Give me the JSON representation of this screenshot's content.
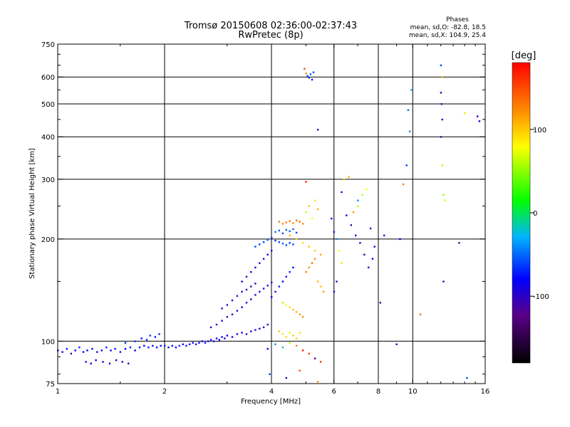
{
  "header": {
    "title": "Tromsø 20150608 02:36:00-02:37:43",
    "subtitle": "RwPretec (8p)"
  },
  "stats": {
    "heading": "Phases",
    "line_o": "mean, sd,O: -82.8, 18.5",
    "line_x": "mean, sd,X: 104.9, 25.4"
  },
  "colorbar": {
    "unit": "[deg]",
    "ticks": [
      {
        "value": 100,
        "label": "100"
      },
      {
        "value": 0,
        "label": "0"
      },
      {
        "value": -100,
        "label": "-100"
      }
    ],
    "range": [
      -180,
      180
    ],
    "colors": [
      "#000000",
      "#5a0088",
      "#0000ff",
      "#00b4ff",
      "#00ff00",
      "#ffff00",
      "#ff8c00",
      "#ff0000"
    ]
  },
  "chart_data": {
    "type": "scatter",
    "title": "Tromsø 20150608 02:36:00-02:37:43",
    "subtitle": "RwPretec (8p)",
    "xlabel": "Frequency [MHz]",
    "ylabel": "Stationary phase Virtual Height [km]",
    "x_scale": "log",
    "y_scale": "log",
    "xlim": [
      1,
      16
    ],
    "ylim": [
      75,
      750
    ],
    "grid": true,
    "x_ticks": [
      {
        "value": 1,
        "label": "1"
      },
      {
        "value": 2,
        "label": "2"
      },
      {
        "value": 4,
        "label": "4"
      },
      {
        "value": 6,
        "label": "6"
      },
      {
        "value": 8,
        "label": "8"
      },
      {
        "value": 10,
        "label": "10"
      },
      {
        "value": 16,
        "label": "16"
      }
    ],
    "y_ticks": [
      {
        "value": 75,
        "label": "75"
      },
      {
        "value": 100,
        "label": "100"
      },
      {
        "value": 200,
        "label": "200"
      },
      {
        "value": 300,
        "label": "300"
      },
      {
        "value": 400,
        "label": "400"
      },
      {
        "value": 500,
        "label": "500"
      },
      {
        "value": 600,
        "label": "600"
      },
      {
        "value": 750,
        "label": "750"
      }
    ],
    "x_grid": [
      2,
      4,
      6,
      8,
      10
    ],
    "y_grid": [
      100,
      200,
      300,
      400,
      500,
      600
    ],
    "color_by": "phase_deg",
    "points": [
      [
        1.0,
        94,
        -80
      ],
      [
        1.03,
        93,
        -85
      ],
      [
        1.06,
        95,
        -75
      ],
      [
        1.09,
        92,
        -90
      ],
      [
        1.12,
        94,
        -80
      ],
      [
        1.15,
        96,
        -70
      ],
      [
        1.18,
        93,
        -85
      ],
      [
        1.21,
        94,
        -80
      ],
      [
        1.25,
        95,
        -75
      ],
      [
        1.29,
        93,
        -95
      ],
      [
        1.33,
        94,
        -80
      ],
      [
        1.37,
        96,
        -70
      ],
      [
        1.41,
        94,
        -85
      ],
      [
        1.45,
        95,
        -75
      ],
      [
        1.5,
        93,
        -90
      ],
      [
        1.55,
        95,
        -80
      ],
      [
        1.6,
        96,
        -70
      ],
      [
        1.65,
        94,
        -85
      ],
      [
        1.7,
        96,
        -75
      ],
      [
        1.75,
        97,
        -80
      ],
      [
        1.8,
        96,
        -70
      ],
      [
        1.85,
        97,
        -85
      ],
      [
        1.9,
        96,
        -75
      ],
      [
        1.95,
        97,
        -80
      ],
      [
        2.0,
        97,
        -70
      ],
      [
        2.05,
        96,
        -85
      ],
      [
        2.1,
        97,
        -75
      ],
      [
        2.15,
        96,
        -80
      ],
      [
        2.2,
        97,
        -70
      ],
      [
        2.25,
        98,
        -85
      ],
      [
        2.3,
        97,
        -75
      ],
      [
        2.35,
        98,
        -80
      ],
      [
        2.4,
        99,
        -85
      ],
      [
        2.45,
        98,
        -75
      ],
      [
        2.5,
        99,
        -80
      ],
      [
        2.55,
        100,
        -85
      ],
      [
        2.6,
        99,
        -75
      ],
      [
        2.65,
        100,
        -90
      ],
      [
        2.7,
        101,
        -80
      ],
      [
        2.75,
        100,
        -85
      ],
      [
        2.8,
        102,
        -75
      ],
      [
        2.85,
        101,
        -90
      ],
      [
        2.9,
        103,
        -80
      ],
      [
        2.95,
        102,
        -85
      ],
      [
        3.0,
        104,
        -90
      ],
      [
        3.1,
        103,
        -85
      ],
      [
        3.2,
        105,
        -95
      ],
      [
        3.3,
        106,
        -90
      ],
      [
        3.4,
        105,
        -100
      ],
      [
        3.5,
        107,
        -95
      ],
      [
        3.6,
        108,
        -100
      ],
      [
        3.7,
        109,
        -95
      ],
      [
        3.8,
        110,
        -100
      ],
      [
        3.9,
        112,
        -95
      ],
      [
        1.2,
        87,
        -90
      ],
      [
        1.24,
        86,
        -95
      ],
      [
        1.28,
        88,
        -85
      ],
      [
        1.34,
        87,
        -90
      ],
      [
        1.4,
        86,
        -95
      ],
      [
        1.46,
        88,
        -85
      ],
      [
        1.52,
        87,
        -90
      ],
      [
        1.58,
        86,
        -95
      ],
      [
        1.55,
        99,
        -70
      ],
      [
        1.65,
        100,
        -65
      ],
      [
        1.72,
        102,
        -75
      ],
      [
        1.78,
        101,
        -70
      ],
      [
        1.82,
        104,
        -65
      ],
      [
        1.88,
        103,
        -75
      ],
      [
        1.93,
        105,
        -70
      ],
      [
        2.7,
        110,
        -95
      ],
      [
        2.8,
        112,
        -100
      ],
      [
        2.9,
        115,
        -95
      ],
      [
        3.0,
        118,
        -100
      ],
      [
        3.1,
        120,
        -95
      ],
      [
        3.2,
        123,
        -100
      ],
      [
        3.3,
        126,
        -95
      ],
      [
        3.4,
        130,
        -100
      ],
      [
        3.5,
        133,
        -95
      ],
      [
        3.6,
        137,
        -100
      ],
      [
        3.7,
        140,
        -95
      ],
      [
        3.8,
        143,
        -100
      ],
      [
        3.9,
        146,
        -95
      ],
      [
        4.0,
        149,
        -100
      ],
      [
        2.9,
        125,
        -100
      ],
      [
        3.0,
        128,
        -105
      ],
      [
        3.1,
        132,
        -100
      ],
      [
        3.2,
        136,
        -105
      ],
      [
        3.3,
        140,
        -100
      ],
      [
        3.4,
        142,
        -105
      ],
      [
        3.5,
        145,
        -100
      ],
      [
        3.6,
        148,
        -105
      ],
      [
        3.3,
        150,
        -95
      ],
      [
        3.4,
        155,
        -100
      ],
      [
        3.5,
        160,
        -95
      ],
      [
        3.6,
        165,
        -90
      ],
      [
        3.7,
        170,
        -95
      ],
      [
        3.8,
        175,
        -90
      ],
      [
        3.9,
        180,
        -85
      ],
      [
        4.0,
        185,
        -80
      ],
      [
        3.6,
        190,
        -60
      ],
      [
        3.7,
        193,
        -65
      ],
      [
        3.8,
        196,
        -60
      ],
      [
        3.9,
        199,
        -55
      ],
      [
        4.0,
        202,
        -60
      ],
      [
        4.1,
        198,
        -65
      ],
      [
        4.2,
        196,
        -60
      ],
      [
        4.3,
        194,
        -55
      ],
      [
        4.4,
        192,
        -60
      ],
      [
        4.5,
        195,
        -65
      ],
      [
        4.6,
        193,
        -60
      ],
      [
        4.1,
        210,
        -50
      ],
      [
        4.2,
        212,
        -55
      ],
      [
        4.3,
        208,
        -60
      ],
      [
        4.4,
        213,
        -50
      ],
      [
        4.5,
        211,
        -55
      ],
      [
        4.6,
        214,
        -50
      ],
      [
        4.7,
        209,
        -60
      ],
      [
        4.2,
        225,
        130
      ],
      [
        4.3,
        222,
        125
      ],
      [
        4.4,
        224,
        135
      ],
      [
        4.5,
        226,
        130
      ],
      [
        4.6,
        223,
        120
      ],
      [
        4.7,
        227,
        135
      ],
      [
        4.8,
        225,
        130
      ],
      [
        4.9,
        222,
        125
      ],
      [
        4.5,
        205,
        110
      ],
      [
        4.7,
        200,
        100
      ],
      [
        4.9,
        195,
        95
      ],
      [
        5.1,
        190,
        105
      ],
      [
        5.3,
        185,
        100
      ],
      [
        5.5,
        180,
        110
      ],
      [
        4.0,
        135,
        -80
      ],
      [
        4.1,
        140,
        -75
      ],
      [
        4.2,
        145,
        -70
      ],
      [
        4.3,
        150,
        -80
      ],
      [
        4.4,
        155,
        -75
      ],
      [
        4.5,
        160,
        -70
      ],
      [
        4.6,
        165,
        -80
      ],
      [
        4.3,
        130,
        60
      ],
      [
        4.4,
        128,
        80
      ],
      [
        4.5,
        126,
        90
      ],
      [
        4.6,
        124,
        100
      ],
      [
        4.7,
        122,
        110
      ],
      [
        4.8,
        120,
        115
      ],
      [
        4.9,
        118,
        120
      ],
      [
        4.2,
        107,
        100
      ],
      [
        4.3,
        105,
        90
      ],
      [
        4.4,
        103,
        95
      ],
      [
        4.5,
        106,
        85
      ],
      [
        4.6,
        104,
        100
      ],
      [
        4.7,
        102,
        95
      ],
      [
        4.8,
        106,
        90
      ],
      [
        3.9,
        95,
        -90
      ],
      [
        4.1,
        98,
        -40
      ],
      [
        4.3,
        96,
        -20
      ],
      [
        4.5,
        99,
        60
      ],
      [
        4.7,
        97,
        130
      ],
      [
        4.9,
        94,
        170
      ],
      [
        5.1,
        92,
        150
      ],
      [
        5.3,
        89,
        -120
      ],
      [
        5.5,
        87,
        160
      ],
      [
        3.95,
        80,
        -60
      ],
      [
        4.4,
        78,
        -100
      ],
      [
        4.8,
        82,
        150
      ],
      [
        5.4,
        76,
        120
      ],
      [
        5.0,
        160,
        130
      ],
      [
        5.1,
        165,
        120
      ],
      [
        5.2,
        170,
        135
      ],
      [
        5.3,
        175,
        125
      ],
      [
        5.4,
        150,
        110
      ],
      [
        5.5,
        145,
        100
      ],
      [
        5.6,
        140,
        115
      ],
      [
        5.0,
        240,
        60
      ],
      [
        5.1,
        250,
        100
      ],
      [
        5.2,
        230,
        80
      ],
      [
        5.3,
        260,
        90
      ],
      [
        5.4,
        245,
        110
      ],
      [
        5.0,
        615,
        120
      ],
      [
        5.05,
        605,
        -60
      ],
      [
        5.1,
        598,
        -70
      ],
      [
        5.15,
        612,
        -55
      ],
      [
        5.2,
        590,
        -75
      ],
      [
        5.25,
        620,
        -60
      ],
      [
        4.95,
        635,
        150
      ],
      [
        5.4,
        420,
        -100
      ],
      [
        5.0,
        295,
        170
      ],
      [
        5.9,
        230,
        -80
      ],
      [
        6.0,
        210,
        -70
      ],
      [
        6.1,
        200,
        -40
      ],
      [
        6.2,
        185,
        80
      ],
      [
        6.3,
        170,
        90
      ],
      [
        6.1,
        150,
        -100
      ],
      [
        6.0,
        140,
        -90
      ],
      [
        6.4,
        300,
        100
      ],
      [
        6.6,
        305,
        110
      ],
      [
        6.3,
        275,
        -80
      ],
      [
        6.5,
        235,
        -100
      ],
      [
        6.7,
        220,
        -110
      ],
      [
        6.9,
        205,
        -90
      ],
      [
        7.1,
        195,
        -95
      ],
      [
        7.3,
        180,
        -100
      ],
      [
        7.5,
        165,
        -90
      ],
      [
        7.0,
        250,
        60
      ],
      [
        7.2,
        270,
        60
      ],
      [
        7.4,
        280,
        80
      ],
      [
        6.8,
        240,
        120
      ],
      [
        7.0,
        260,
        -40
      ],
      [
        7.6,
        215,
        -100
      ],
      [
        7.8,
        190,
        -90
      ],
      [
        7.7,
        175,
        -80
      ],
      [
        8.3,
        205,
        -70
      ],
      [
        8.1,
        130,
        -100
      ],
      [
        9.0,
        98,
        -100
      ],
      [
        9.2,
        200,
        -80
      ],
      [
        9.4,
        290,
        130
      ],
      [
        9.6,
        330,
        -60
      ],
      [
        9.8,
        415,
        -40
      ],
      [
        9.9,
        550,
        -30
      ],
      [
        9.7,
        480,
        -50
      ],
      [
        10.5,
        120,
        140
      ],
      [
        12.0,
        650,
        -60
      ],
      [
        12.1,
        600,
        110
      ],
      [
        12.0,
        540,
        -100
      ],
      [
        12.05,
        500,
        -110
      ],
      [
        12.1,
        450,
        -90
      ],
      [
        12.0,
        400,
        -100
      ],
      [
        12.1,
        330,
        60
      ],
      [
        12.2,
        270,
        50
      ],
      [
        12.3,
        260,
        70
      ],
      [
        12.2,
        150,
        -100
      ],
      [
        14.0,
        470,
        90
      ],
      [
        15.2,
        460,
        -100
      ],
      [
        15.4,
        445,
        -90
      ],
      [
        13.5,
        195,
        -120
      ],
      [
        14.2,
        78,
        -60
      ]
    ]
  }
}
